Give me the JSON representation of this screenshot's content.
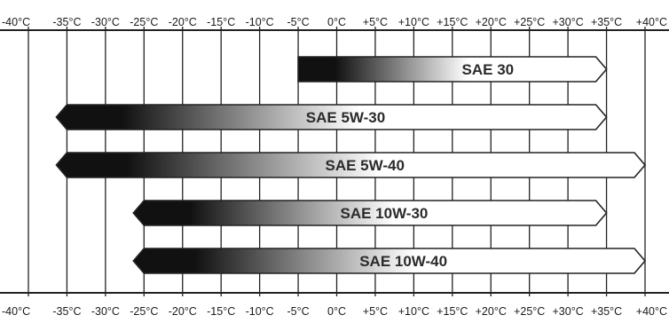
{
  "chart_data": {
    "type": "bar",
    "orientation": "horizontal",
    "xlim": [
      -40,
      40
    ],
    "x_ticks": [
      -40,
      -35,
      -30,
      -25,
      -20,
      -15,
      -10,
      -5,
      0,
      5,
      10,
      15,
      20,
      25,
      30,
      35,
      40
    ],
    "x_tick_labels_top": [
      "-40°C",
      "-35°C",
      "-30°C",
      "-25°C",
      "-20°C",
      "-15°C",
      "-10°C",
      "-5°C",
      "0°C",
      "+5°C",
      "+10°C",
      "+15°C",
      "+20°C",
      "+25°C",
      "+30°C",
      "+35°C",
      "+40°C"
    ],
    "x_tick_labels_bottom": [
      "-40°C",
      "-35°C",
      "-30°C",
      "-25°C",
      "-20°C",
      "-15°C",
      "-10°C",
      "-5°C",
      "0°C",
      "+5°C",
      "+10°C",
      "+15°C",
      "+20°C",
      "+25°C",
      "+30°C",
      "+35°C",
      "+40°C"
    ],
    "grid": true,
    "bars": [
      {
        "label": "SAE 30",
        "start": -5,
        "end": 35,
        "left_arrow": false,
        "right_arrow": true
      },
      {
        "label": "SAE 5W-30",
        "start": -35,
        "end": 35,
        "left_arrow": true,
        "right_arrow": true
      },
      {
        "label": "SAE 5W-40",
        "start": -35,
        "end": 40,
        "left_arrow": true,
        "right_arrow": true
      },
      {
        "label": "SAE 10W-30",
        "start": -25,
        "end": 35,
        "left_arrow": true,
        "right_arrow": true
      },
      {
        "label": "SAE 10W-40",
        "start": -25,
        "end": 40,
        "left_arrow": true,
        "right_arrow": true
      }
    ],
    "colors": {
      "bar_dark": "#111111",
      "bar_light": "#ffffff",
      "grid": "#222222",
      "background": "#ffffff"
    }
  }
}
